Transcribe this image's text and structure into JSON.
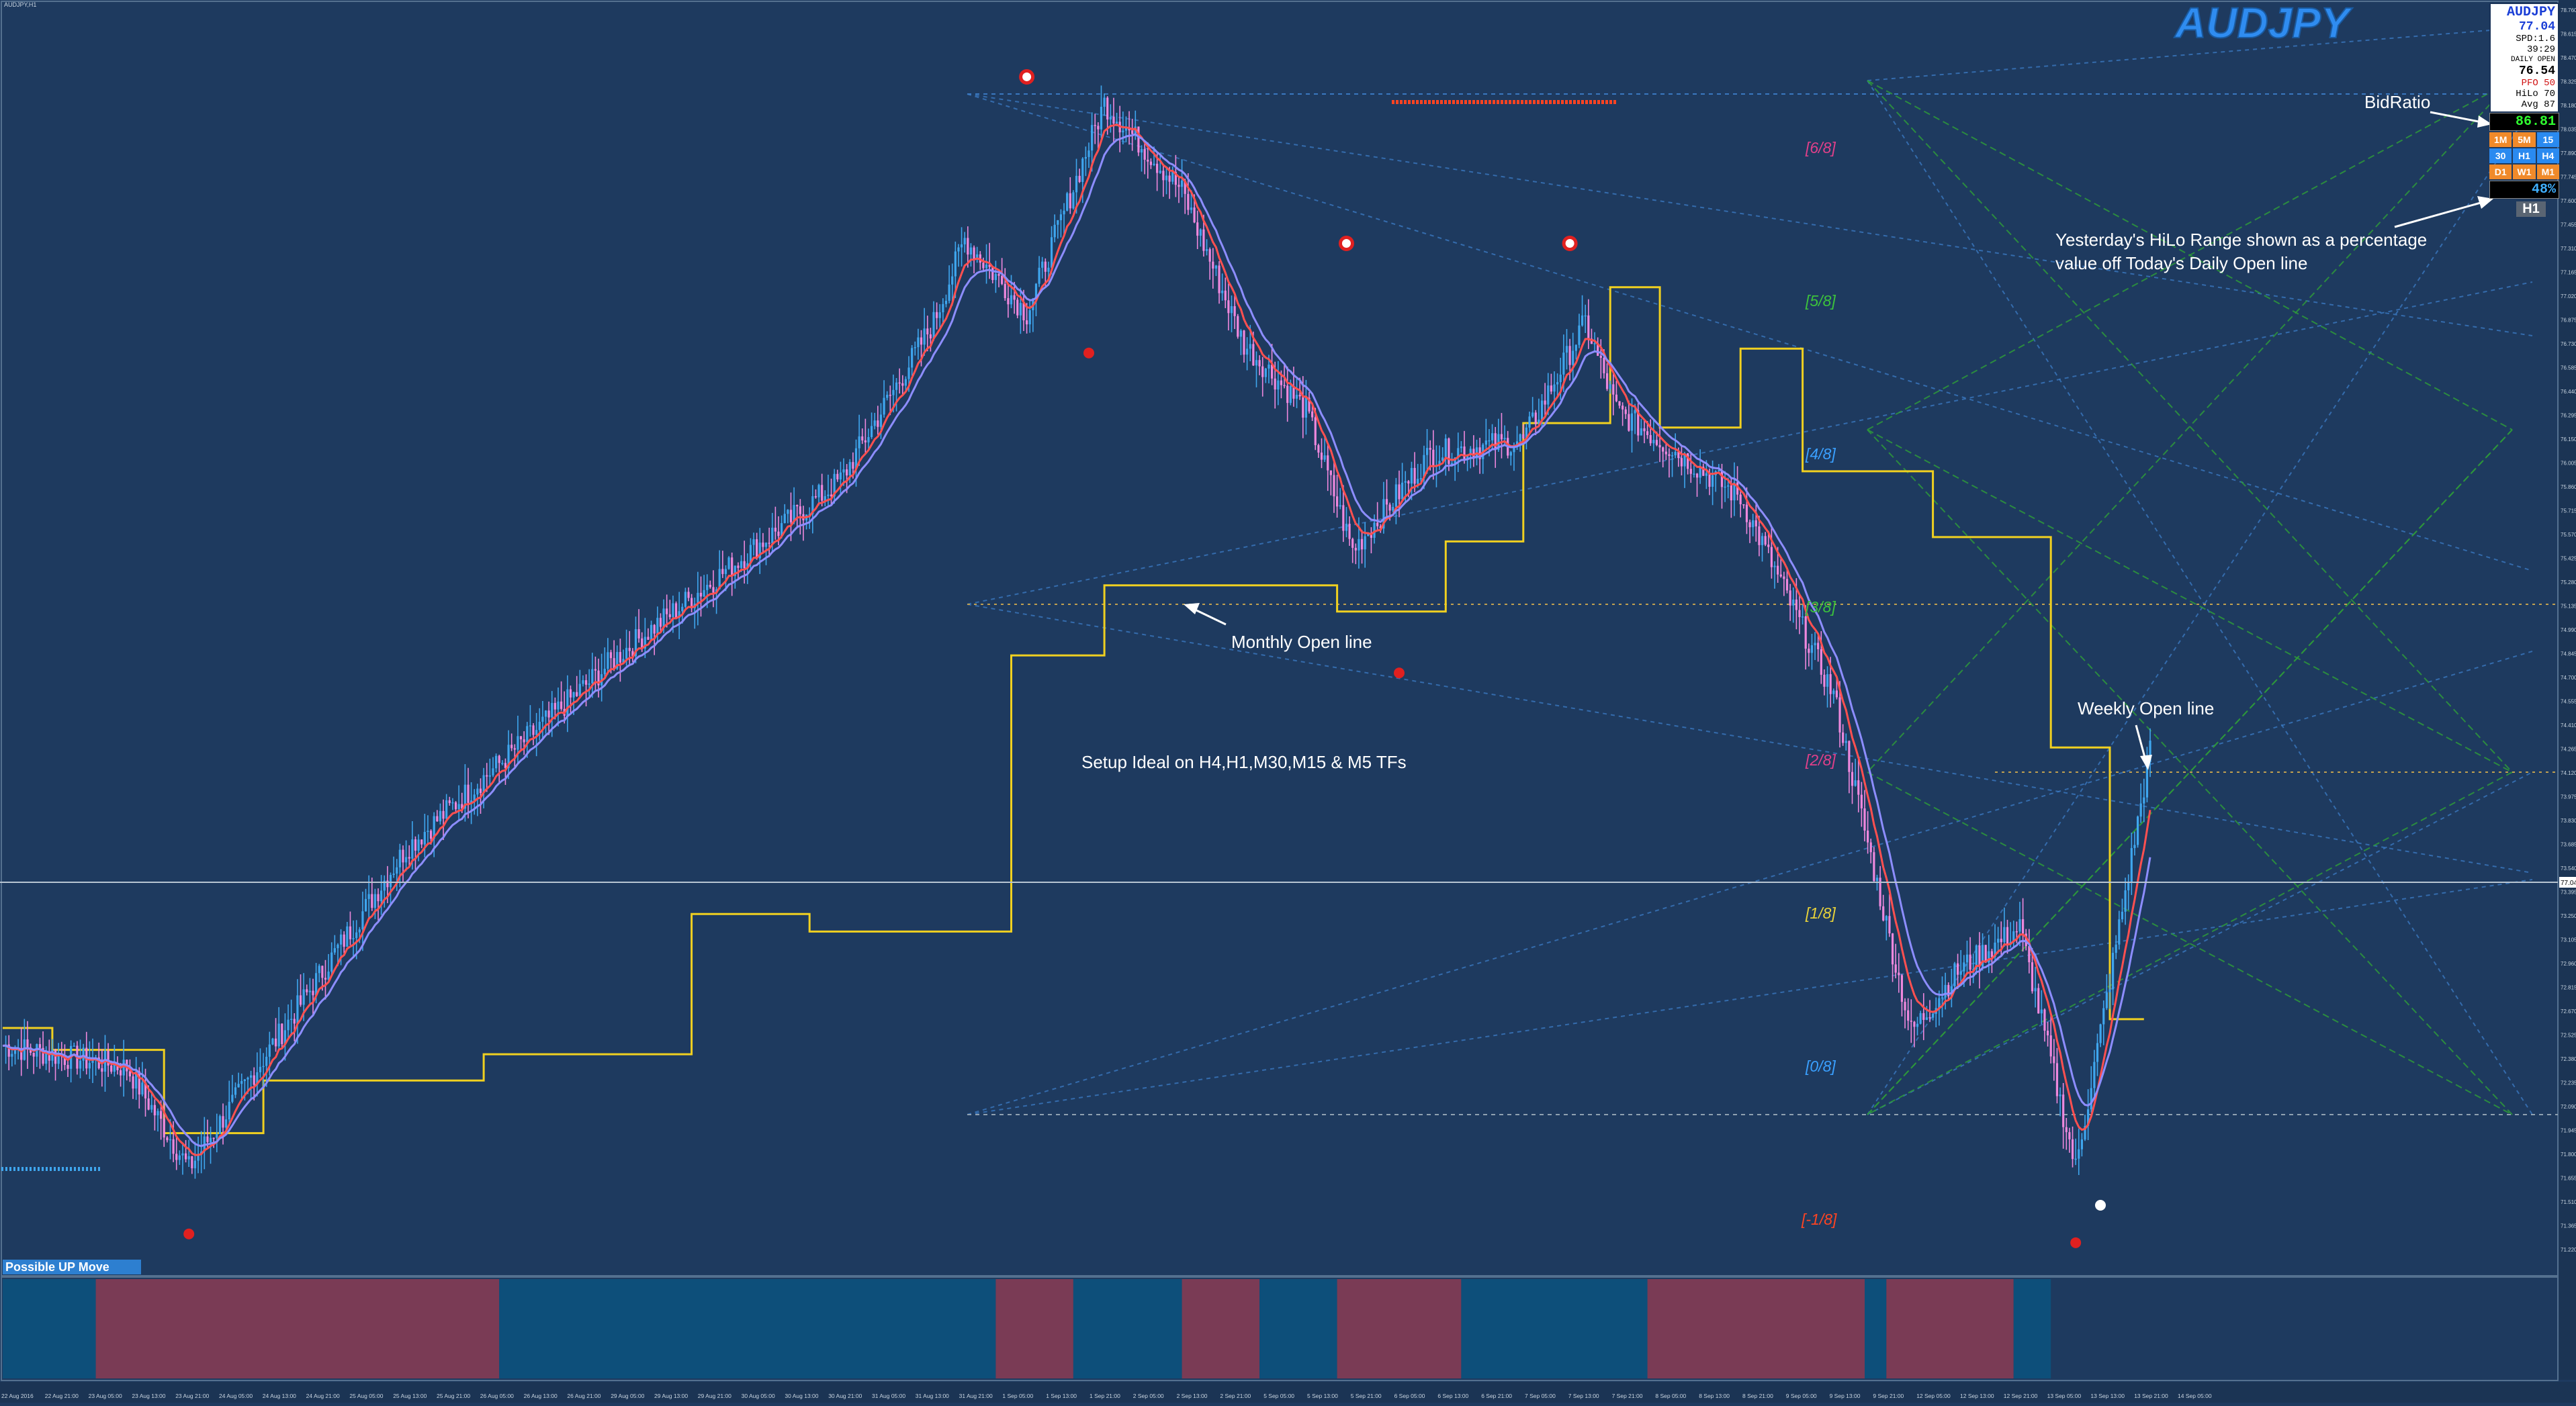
{
  "window": {
    "title": "AUDJPY,H1"
  },
  "symbol_watermark": "AUDJPY",
  "info_panel": {
    "symbol": "AUDJPY",
    "price": "77.04",
    "spread": "SPD:1.6",
    "timer": "39:29",
    "daily_open_label": "DAILY OPEN",
    "daily_open_value": "76.54",
    "pfo": "PFO  50",
    "hilo": "HiLo  70",
    "avg": "Avg  87",
    "bid_ratio": "86.81",
    "tf_row1": [
      "1M",
      "5M",
      "15"
    ],
    "tf_row2": [
      "30",
      "H1",
      "H4"
    ],
    "tf_row3": [
      "D1",
      "W1",
      "M1"
    ],
    "hilo_pct": "48%",
    "timeframe": "H1"
  },
  "annotations": {
    "bid_ratio": "BidRatio",
    "hilo_range_line1": "Yesterday's HiLo Range shown as a percentage",
    "hilo_range_line2": "value off Today's Daily Open line",
    "monthly_open": "Monthly Open line",
    "weekly_open": "Weekly Open line",
    "setup": "Setup Ideal on H4,H1,M30,M15 & M5 TFs",
    "signal": "Possible UP Move"
  },
  "murrey_levels": [
    {
      "label": "[6/8]",
      "color": "#e0408a"
    },
    {
      "label": "[5/8]",
      "color": "#3cc23c"
    },
    {
      "label": "[4/8]",
      "color": "#3aa0ff"
    },
    {
      "label": "[3/8]",
      "color": "#3cc23c"
    },
    {
      "label": "[2/8]",
      "color": "#e0408a"
    },
    {
      "label": "[1/8]",
      "color": "#e8d23a"
    },
    {
      "label": "[0/8]",
      "color": "#3aa0ff"
    },
    {
      "label": "[-1/8]",
      "color": "#ff4422"
    }
  ],
  "price_axis": {
    "labels": [
      "78.760",
      "78.615",
      "78.470",
      "78.325",
      "78.180",
      "78.035",
      "77.890",
      "77.745",
      "77.600",
      "77.455",
      "77.310",
      "77.165",
      "77.020",
      "76.875",
      "76.730",
      "76.585",
      "76.440",
      "76.295",
      "76.150",
      "76.005",
      "75.860",
      "75.715",
      "75.570",
      "75.425",
      "75.280",
      "75.135",
      "74.990",
      "74.845",
      "74.700",
      "74.555",
      "74.410",
      "74.265",
      "74.120",
      "73.975",
      "73.830",
      "73.685",
      "73.540",
      "73.395",
      "73.250",
      "73.105",
      "72.960",
      "72.815",
      "72.670",
      "72.525",
      "72.380",
      "72.235",
      "72.090",
      "71.945",
      "71.800",
      "71.655",
      "71.510",
      "71.365",
      "71.220"
    ],
    "current_price": "77.041"
  },
  "time_axis": {
    "labels": [
      "22 Aug 2016",
      "22 Aug 21:00",
      "23 Aug 05:00",
      "23 Aug 13:00",
      "23 Aug 21:00",
      "24 Aug 05:00",
      "24 Aug 13:00",
      "24 Aug 21:00",
      "25 Aug 05:00",
      "25 Aug 13:00",
      "25 Aug 21:00",
      "26 Aug 05:00",
      "26 Aug 13:00",
      "26 Aug 21:00",
      "29 Aug 05:00",
      "29 Aug 13:00",
      "29 Aug 21:00",
      "30 Aug 05:00",
      "30 Aug 13:00",
      "30 Aug 21:00",
      "31 Aug 05:00",
      "31 Aug 13:00",
      "31 Aug 21:00",
      "1 Sep 05:00",
      "1 Sep 13:00",
      "1 Sep 21:00",
      "2 Sep 05:00",
      "2 Sep 13:00",
      "2 Sep 21:00",
      "5 Sep 05:00",
      "5 Sep 13:00",
      "5 Sep 21:00",
      "6 Sep 05:00",
      "6 Sep 13:00",
      "6 Sep 21:00",
      "7 Sep 05:00",
      "7 Sep 13:00",
      "7 Sep 21:00",
      "8 Sep 05:00",
      "8 Sep 13:00",
      "8 Sep 21:00",
      "9 Sep 05:00",
      "9 Sep 13:00",
      "9 Sep 21:00",
      "12 Sep 05:00",
      "12 Sep 13:00",
      "12 Sep 21:00",
      "13 Sep 05:00",
      "13 Sep 13:00",
      "13 Sep 21:00",
      "14 Sep 05:00"
    ]
  },
  "colors": {
    "background": "#1e3a5f",
    "bull_candle": "#3fa6ee",
    "bear_candle": "#ee88dd",
    "ma_fast": "#ff5050",
    "ma_slow": "#8d8dff",
    "open_steps": "#f0d020",
    "sub_bull": "#0d4f7a",
    "sub_bear": "#7a3b55"
  },
  "chart_data": {
    "type": "candlestick",
    "symbol": "AUDJPY",
    "timeframe": "H1",
    "ylim": [
      75.94,
      78.82
    ],
    "price_keypoints": [
      {
        "bar": 0,
        "price": 76.45
      },
      {
        "bar": 40,
        "price": 76.4
      },
      {
        "bar": 60,
        "price": 76.17
      },
      {
        "bar": 130,
        "price": 76.9
      },
      {
        "bar": 200,
        "price": 77.35
      },
      {
        "bar": 270,
        "price": 77.74
      },
      {
        "bar": 300,
        "price": 78.1
      },
      {
        "bar": 310,
        "price": 78.29
      },
      {
        "bar": 330,
        "price": 78.12
      },
      {
        "bar": 355,
        "price": 78.6
      },
      {
        "bar": 380,
        "price": 78.4
      },
      {
        "bar": 400,
        "price": 78.05
      },
      {
        "bar": 420,
        "price": 77.9
      },
      {
        "bar": 435,
        "price": 77.58
      },
      {
        "bar": 460,
        "price": 77.8
      },
      {
        "bar": 490,
        "price": 77.83
      },
      {
        "bar": 510,
        "price": 78.1
      },
      {
        "bar": 520,
        "price": 77.9
      },
      {
        "bar": 560,
        "price": 77.7
      },
      {
        "bar": 590,
        "price": 77.25
      },
      {
        "bar": 615,
        "price": 76.48
      },
      {
        "bar": 630,
        "price": 76.62
      },
      {
        "bar": 650,
        "price": 76.72
      },
      {
        "bar": 668,
        "price": 76.17
      },
      {
        "bar": 678,
        "price": 76.56
      },
      {
        "bar": 692,
        "price": 77.12
      }
    ],
    "fractal_highs": [
      {
        "bar": 330,
        "price": 78.66
      },
      {
        "bar": 433,
        "price": 78.28
      },
      {
        "bar": 505,
        "price": 78.28
      }
    ],
    "fractal_lows": [
      {
        "bar": 60,
        "price": 76.02
      },
      {
        "bar": 350,
        "price": 78.03
      },
      {
        "bar": 450,
        "price": 77.3
      },
      {
        "bar": 668,
        "price": 76.0
      }
    ],
    "open_steps": [
      {
        "from": 0,
        "to": 16,
        "price": 76.49
      },
      {
        "from": 16,
        "to": 52,
        "price": 76.44
      },
      {
        "from": 52,
        "to": 84,
        "price": 76.25
      },
      {
        "from": 84,
        "to": 155,
        "price": 76.37
      },
      {
        "from": 155,
        "to": 222,
        "price": 76.43
      },
      {
        "from": 222,
        "to": 260,
        "price": 76.75
      },
      {
        "from": 260,
        "to": 325,
        "price": 76.71
      },
      {
        "from": 325,
        "to": 355,
        "price": 77.34
      },
      {
        "from": 355,
        "to": 430,
        "price": 77.5
      },
      {
        "from": 430,
        "to": 465,
        "price": 77.44
      },
      {
        "from": 465,
        "to": 490,
        "price": 77.6
      },
      {
        "from": 490,
        "to": 518,
        "price": 77.87
      },
      {
        "from": 518,
        "to": 534,
        "price": 78.18
      },
      {
        "from": 534,
        "to": 560,
        "price": 77.86
      },
      {
        "from": 560,
        "to": 580,
        "price": 78.04
      },
      {
        "from": 580,
        "to": 622,
        "price": 77.76
      },
      {
        "from": 622,
        "to": 660,
        "price": 77.61
      },
      {
        "from": 660,
        "to": 679,
        "price": 77.13
      },
      {
        "from": 679,
        "to": 690,
        "price": 76.51
      }
    ],
    "sub_window_segments": [
      {
        "from": 0,
        "to": 30,
        "state": "bull"
      },
      {
        "from": 30,
        "to": 160,
        "state": "bear"
      },
      {
        "from": 160,
        "to": 320,
        "state": "bull"
      },
      {
        "from": 320,
        "to": 345,
        "state": "bear"
      },
      {
        "from": 345,
        "to": 380,
        "state": "bull"
      },
      {
        "from": 380,
        "to": 405,
        "state": "bear"
      },
      {
        "from": 405,
        "to": 430,
        "state": "bull"
      },
      {
        "from": 430,
        "to": 470,
        "state": "bear"
      },
      {
        "from": 470,
        "to": 530,
        "state": "bull"
      },
      {
        "from": 530,
        "to": 600,
        "state": "bear"
      },
      {
        "from": 600,
        "to": 607,
        "state": "bull"
      },
      {
        "from": 607,
        "to": 648,
        "state": "bear"
      },
      {
        "from": 648,
        "to": 660,
        "state": "bull"
      }
    ]
  }
}
